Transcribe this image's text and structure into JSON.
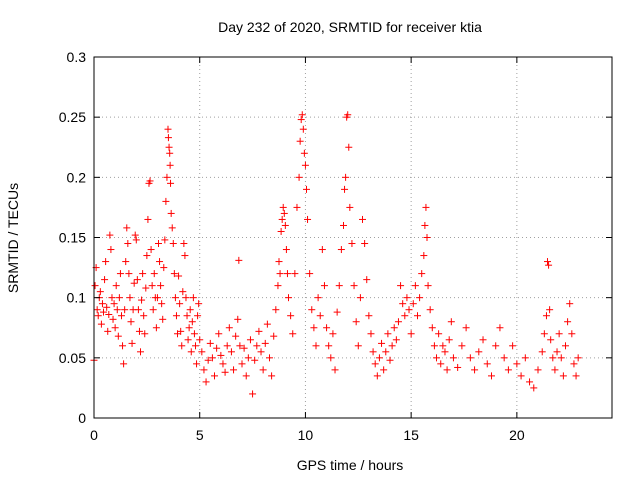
{
  "chart_data": {
    "type": "scatter",
    "title": "Day 232 of 2020, SRMTID for receiver ktia",
    "xlabel": "GPS time / hours",
    "ylabel": "SRMTID / TECUs",
    "xlim": [
      0,
      24.5
    ],
    "ylim": [
      0,
      0.3
    ],
    "x_ticks": [
      0,
      5,
      10,
      15,
      20
    ],
    "y_ticks": [
      0,
      0.05,
      0.1,
      0.15,
      0.2,
      0.25,
      0.3
    ],
    "x_tick_labels": [
      "0",
      "5",
      "10",
      "15",
      "20"
    ],
    "y_tick_labels": [
      "0",
      "0.05",
      "0.1",
      "0.15",
      "0.2",
      "0.25",
      "0.3"
    ],
    "grid": true,
    "marker": "plus",
    "color": "#ff0000",
    "series": [
      {
        "points": [
          [
            0.0,
            0.048
          ],
          [
            0.05,
            0.11
          ],
          [
            0.1,
            0.125
          ],
          [
            0.15,
            0.09
          ],
          [
            0.2,
            0.085
          ],
          [
            0.25,
            0.1
          ],
          [
            0.3,
            0.105
          ],
          [
            0.35,
            0.078
          ],
          [
            0.4,
            0.095
          ],
          [
            0.45,
            0.088
          ],
          [
            0.5,
            0.115
          ],
          [
            0.55,
            0.13
          ],
          [
            0.6,
            0.092
          ],
          [
            0.65,
            0.072
          ],
          [
            0.7,
            0.086
          ],
          [
            0.75,
            0.152
          ],
          [
            0.8,
            0.14
          ],
          [
            0.85,
            0.1
          ],
          [
            0.9,
            0.082
          ],
          [
            0.95,
            0.095
          ],
          [
            1.0,
            0.075
          ],
          [
            1.05,
            0.11
          ],
          [
            1.1,
            0.09
          ],
          [
            1.15,
            0.068
          ],
          [
            1.2,
            0.1
          ],
          [
            1.25,
            0.12
          ],
          [
            1.3,
            0.085
          ],
          [
            1.35,
            0.06
          ],
          [
            1.4,
            0.045
          ],
          [
            1.45,
            0.09
          ],
          [
            1.5,
            0.13
          ],
          [
            1.55,
            0.158
          ],
          [
            1.6,
            0.145
          ],
          [
            1.65,
            0.12
          ],
          [
            1.7,
            0.1
          ],
          [
            1.75,
            0.08
          ],
          [
            1.8,
            0.062
          ],
          [
            1.85,
            0.09
          ],
          [
            1.9,
            0.112
          ],
          [
            1.95,
            0.152
          ],
          [
            2.0,
            0.148
          ],
          [
            2.05,
            0.115
          ],
          [
            2.1,
            0.09
          ],
          [
            2.15,
            0.072
          ],
          [
            2.2,
            0.055
          ],
          [
            2.25,
            0.098
          ],
          [
            2.3,
            0.12
          ],
          [
            2.35,
            0.085
          ],
          [
            2.4,
            0.07
          ],
          [
            2.45,
            0.108
          ],
          [
            2.5,
            0.135
          ],
          [
            2.55,
            0.165
          ],
          [
            2.6,
            0.195
          ],
          [
            2.65,
            0.197
          ],
          [
            2.7,
            0.14
          ],
          [
            2.75,
            0.11
          ],
          [
            2.8,
            0.09
          ],
          [
            2.85,
            0.12
          ],
          [
            2.9,
            0.1
          ],
          [
            2.95,
            0.075
          ],
          [
            3.0,
            0.1
          ],
          [
            3.05,
            0.145
          ],
          [
            3.1,
            0.13
          ],
          [
            3.15,
            0.11
          ],
          [
            3.2,
            0.095
          ],
          [
            3.25,
            0.082
          ],
          [
            3.3,
            0.125
          ],
          [
            3.35,
            0.148
          ],
          [
            3.4,
            0.18
          ],
          [
            3.45,
            0.2
          ],
          [
            3.5,
            0.24
          ],
          [
            3.52,
            0.233
          ],
          [
            3.55,
            0.225
          ],
          [
            3.58,
            0.22
          ],
          [
            3.6,
            0.21
          ],
          [
            3.62,
            0.195
          ],
          [
            3.65,
            0.17
          ],
          [
            3.7,
            0.158
          ],
          [
            3.75,
            0.145
          ],
          [
            3.8,
            0.12
          ],
          [
            3.85,
            0.1
          ],
          [
            3.9,
            0.085
          ],
          [
            3.95,
            0.07
          ],
          [
            4.0,
            0.118
          ],
          [
            4.05,
            0.095
          ],
          [
            4.1,
            0.072
          ],
          [
            4.15,
            0.06
          ],
          [
            4.2,
            0.105
          ],
          [
            4.25,
            0.145
          ],
          [
            4.3,
            0.135
          ],
          [
            4.35,
            0.1
          ],
          [
            4.4,
            0.085
          ],
          [
            4.45,
            0.065
          ],
          [
            4.5,
            0.075
          ],
          [
            4.55,
            0.09
          ],
          [
            4.6,
            0.055
          ],
          [
            4.65,
            0.08
          ],
          [
            4.7,
            0.1
          ],
          [
            4.75,
            0.07
          ],
          [
            4.8,
            0.06
          ],
          [
            4.85,
            0.045
          ],
          [
            4.9,
            0.085
          ],
          [
            4.95,
            0.095
          ],
          [
            5.0,
            0.065
          ],
          [
            5.1,
            0.055
          ],
          [
            5.2,
            0.04
          ],
          [
            5.3,
            0.03
          ],
          [
            5.4,
            0.048
          ],
          [
            5.5,
            0.062
          ],
          [
            5.6,
            0.05
          ],
          [
            5.7,
            0.035
          ],
          [
            5.8,
            0.058
          ],
          [
            5.9,
            0.07
          ],
          [
            6.0,
            0.052
          ],
          [
            6.1,
            0.045
          ],
          [
            6.2,
            0.038
          ],
          [
            6.3,
            0.06
          ],
          [
            6.4,
            0.075
          ],
          [
            6.5,
            0.055
          ],
          [
            6.6,
            0.04
          ],
          [
            6.7,
            0.068
          ],
          [
            6.8,
            0.082
          ],
          [
            6.85,
            0.131
          ],
          [
            6.9,
            0.06
          ],
          [
            7.0,
            0.045
          ],
          [
            7.1,
            0.058
          ],
          [
            7.2,
            0.035
          ],
          [
            7.3,
            0.05
          ],
          [
            7.4,
            0.065
          ],
          [
            7.5,
            0.02
          ],
          [
            7.6,
            0.048
          ],
          [
            7.7,
            0.06
          ],
          [
            7.8,
            0.072
          ],
          [
            7.9,
            0.055
          ],
          [
            8.0,
            0.04
          ],
          [
            8.1,
            0.062
          ],
          [
            8.2,
            0.078
          ],
          [
            8.3,
            0.05
          ],
          [
            8.4,
            0.035
          ],
          [
            8.5,
            0.068
          ],
          [
            8.6,
            0.09
          ],
          [
            8.7,
            0.11
          ],
          [
            8.75,
            0.13
          ],
          [
            8.8,
            0.12
          ],
          [
            8.85,
            0.155
          ],
          [
            8.9,
            0.165
          ],
          [
            8.95,
            0.175
          ],
          [
            9.0,
            0.17
          ],
          [
            9.05,
            0.16
          ],
          [
            9.1,
            0.14
          ],
          [
            9.15,
            0.12
          ],
          [
            9.2,
            0.1
          ],
          [
            9.3,
            0.085
          ],
          [
            9.4,
            0.07
          ],
          [
            9.5,
            0.12
          ],
          [
            9.6,
            0.175
          ],
          [
            9.7,
            0.2
          ],
          [
            9.75,
            0.23
          ],
          [
            9.8,
            0.248
          ],
          [
            9.85,
            0.252
          ],
          [
            9.9,
            0.24
          ],
          [
            9.95,
            0.22
          ],
          [
            10.0,
            0.21
          ],
          [
            10.05,
            0.19
          ],
          [
            10.1,
            0.165
          ],
          [
            10.2,
            0.12
          ],
          [
            10.3,
            0.09
          ],
          [
            10.4,
            0.075
          ],
          [
            10.5,
            0.06
          ],
          [
            10.6,
            0.1
          ],
          [
            10.7,
            0.085
          ],
          [
            10.8,
            0.14
          ],
          [
            10.9,
            0.11
          ],
          [
            11.0,
            0.075
          ],
          [
            11.1,
            0.06
          ],
          [
            11.2,
            0.05
          ],
          [
            11.3,
            0.07
          ],
          [
            11.4,
            0.04
          ],
          [
            11.5,
            0.088
          ],
          [
            11.6,
            0.11
          ],
          [
            11.7,
            0.14
          ],
          [
            11.8,
            0.16
          ],
          [
            11.85,
            0.19
          ],
          [
            11.9,
            0.2
          ],
          [
            11.95,
            0.25
          ],
          [
            12.0,
            0.252
          ],
          [
            12.05,
            0.225
          ],
          [
            12.1,
            0.175
          ],
          [
            12.2,
            0.145
          ],
          [
            12.3,
            0.11
          ],
          [
            12.4,
            0.08
          ],
          [
            12.5,
            0.06
          ],
          [
            12.6,
            0.1
          ],
          [
            12.7,
            0.165
          ],
          [
            12.8,
            0.145
          ],
          [
            12.9,
            0.115
          ],
          [
            13.0,
            0.085
          ],
          [
            13.1,
            0.07
          ],
          [
            13.2,
            0.055
          ],
          [
            13.3,
            0.045
          ],
          [
            13.4,
            0.035
          ],
          [
            13.5,
            0.05
          ],
          [
            13.6,
            0.062
          ],
          [
            13.7,
            0.04
          ],
          [
            13.8,
            0.055
          ],
          [
            13.9,
            0.07
          ],
          [
            14.0,
            0.048
          ],
          [
            14.1,
            0.06
          ],
          [
            14.2,
            0.075
          ],
          [
            14.3,
            0.065
          ],
          [
            14.4,
            0.08
          ],
          [
            14.5,
            0.11
          ],
          [
            14.6,
            0.095
          ],
          [
            14.7,
            0.085
          ],
          [
            14.8,
            0.1
          ],
          [
            14.9,
            0.09
          ],
          [
            15.0,
            0.07
          ],
          [
            15.1,
            0.095
          ],
          [
            15.2,
            0.11
          ],
          [
            15.3,
            0.085
          ],
          [
            15.4,
            0.1
          ],
          [
            15.5,
            0.12
          ],
          [
            15.6,
            0.135
          ],
          [
            15.65,
            0.16
          ],
          [
            15.7,
            0.175
          ],
          [
            15.75,
            0.15
          ],
          [
            15.8,
            0.11
          ],
          [
            15.9,
            0.09
          ],
          [
            16.0,
            0.075
          ],
          [
            16.1,
            0.06
          ],
          [
            16.2,
            0.05
          ],
          [
            16.3,
            0.07
          ],
          [
            16.4,
            0.045
          ],
          [
            16.5,
            0.06
          ],
          [
            16.6,
            0.055
          ],
          [
            16.7,
            0.04
          ],
          [
            16.8,
            0.065
          ],
          [
            16.9,
            0.08
          ],
          [
            17.0,
            0.05
          ],
          [
            17.2,
            0.042
          ],
          [
            17.4,
            0.06
          ],
          [
            17.6,
            0.075
          ],
          [
            17.8,
            0.05
          ],
          [
            18.0,
            0.04
          ],
          [
            18.2,
            0.055
          ],
          [
            18.4,
            0.065
          ],
          [
            18.6,
            0.045
          ],
          [
            18.8,
            0.035
          ],
          [
            19.0,
            0.06
          ],
          [
            19.2,
            0.075
          ],
          [
            19.4,
            0.05
          ],
          [
            19.6,
            0.04
          ],
          [
            19.8,
            0.06
          ],
          [
            20.0,
            0.045
          ],
          [
            20.2,
            0.035
          ],
          [
            20.4,
            0.05
          ],
          [
            20.6,
            0.03
          ],
          [
            20.8,
            0.025
          ],
          [
            21.0,
            0.04
          ],
          [
            21.2,
            0.055
          ],
          [
            21.3,
            0.07
          ],
          [
            21.4,
            0.085
          ],
          [
            21.45,
            0.13
          ],
          [
            21.5,
            0.127
          ],
          [
            21.55,
            0.09
          ],
          [
            21.6,
            0.065
          ],
          [
            21.7,
            0.05
          ],
          [
            21.8,
            0.04
          ],
          [
            21.9,
            0.055
          ],
          [
            22.0,
            0.07
          ],
          [
            22.1,
            0.05
          ],
          [
            22.2,
            0.035
          ],
          [
            22.3,
            0.06
          ],
          [
            22.4,
            0.08
          ],
          [
            22.5,
            0.095
          ],
          [
            22.6,
            0.07
          ],
          [
            22.7,
            0.045
          ],
          [
            22.8,
            0.035
          ],
          [
            22.9,
            0.05
          ]
        ]
      }
    ]
  }
}
